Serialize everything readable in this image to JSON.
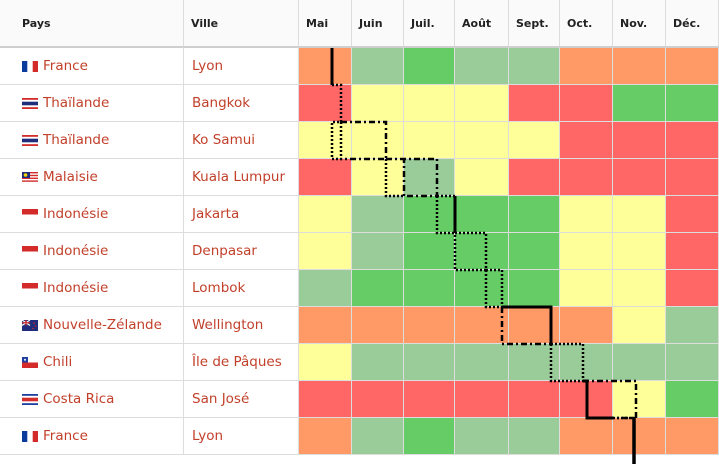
{
  "table": {
    "headers": {
      "pays": "Pays",
      "ville": "Ville",
      "months": [
        "Mai",
        "Juin",
        "Juil.",
        "Août",
        "Sept.",
        "Oct.",
        "Nov.",
        "Déc."
      ]
    },
    "rows": [
      {
        "pays": "France",
        "ville": "Lyon",
        "flag": "fr",
        "ratings": [
          "O",
          "G",
          "GG",
          "G",
          "G",
          "O",
          "O",
          "O"
        ]
      },
      {
        "pays": "Thaïlande",
        "ville": "Bangkok",
        "flag": "th",
        "ratings": [
          "R",
          "Y",
          "Y",
          "Y",
          "R",
          "R",
          "GG",
          "GG"
        ]
      },
      {
        "pays": "Thaïlande",
        "ville": "Ko Samui",
        "flag": "th",
        "ratings": [
          "Y",
          "Y",
          "Y",
          "Y",
          "Y",
          "R",
          "R",
          "R"
        ]
      },
      {
        "pays": "Malaisie",
        "ville": "Kuala Lumpur",
        "flag": "my",
        "ratings": [
          "R",
          "Y",
          "G",
          "Y",
          "R",
          "R",
          "R",
          "R"
        ]
      },
      {
        "pays": "Indonésie",
        "ville": "Jakarta",
        "flag": "id",
        "ratings": [
          "Y",
          "G",
          "GG",
          "GG",
          "GG",
          "Y",
          "Y",
          "R"
        ]
      },
      {
        "pays": "Indonésie",
        "ville": "Denpasar",
        "flag": "id",
        "ratings": [
          "Y",
          "G",
          "GG",
          "GG",
          "GG",
          "Y",
          "Y",
          "R"
        ]
      },
      {
        "pays": "Indonésie",
        "ville": "Lombok",
        "flag": "id",
        "ratings": [
          "G",
          "GG",
          "GG",
          "GG",
          "GG",
          "Y",
          "Y",
          "R"
        ]
      },
      {
        "pays": "Nouvelle-Zélande",
        "ville": "Wellington",
        "flag": "nz",
        "ratings": [
          "O",
          "O",
          "O",
          "O",
          "O",
          "O",
          "Y",
          "G"
        ]
      },
      {
        "pays": "Chili",
        "ville": "Île de Pâques",
        "flag": "cl",
        "ratings": [
          "Y",
          "G",
          "G",
          "G",
          "G",
          "G",
          "G",
          "G"
        ]
      },
      {
        "pays": "Costa Rica",
        "ville": "San José",
        "flag": "cr",
        "ratings": [
          "R",
          "R",
          "R",
          "R",
          "R",
          "R",
          "Y",
          "GG"
        ]
      },
      {
        "pays": "France",
        "ville": "Lyon",
        "flag": "fr",
        "ratings": [
          "O",
          "G",
          "GG",
          "G",
          "G",
          "O",
          "O",
          "O"
        ]
      }
    ]
  },
  "colors": {
    "GG": "#66cc66",
    "G": "#99cc99",
    "Y": "#ffff99",
    "O": "#ff9966",
    "R": "#ff6666"
  }
}
